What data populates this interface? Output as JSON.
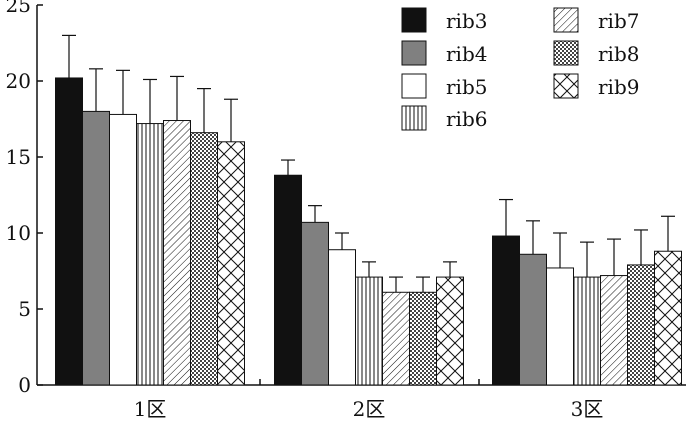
{
  "chart_data": {
    "type": "bar",
    "categories": [
      "1区",
      "2区",
      "3区"
    ],
    "series": [
      {
        "name": "rib3",
        "values": [
          20.2,
          13.8,
          9.8
        ],
        "errors": [
          2.8,
          1.0,
          2.4
        ],
        "pattern": "solid-black"
      },
      {
        "name": "rib4",
        "values": [
          18.0,
          10.7,
          8.6
        ],
        "errors": [
          2.8,
          1.1,
          2.2
        ],
        "pattern": "solid-gray"
      },
      {
        "name": "rib5",
        "values": [
          17.8,
          8.9,
          7.7
        ],
        "errors": [
          2.9,
          1.1,
          2.3
        ],
        "pattern": "white"
      },
      {
        "name": "rib6",
        "values": [
          17.2,
          7.1,
          7.1
        ],
        "errors": [
          2.9,
          1.0,
          2.3
        ],
        "pattern": "vertical-lines"
      },
      {
        "name": "rib7",
        "values": [
          17.4,
          6.1,
          7.2
        ],
        "errors": [
          2.9,
          1.0,
          2.4
        ],
        "pattern": "diagonal-lines"
      },
      {
        "name": "rib8",
        "values": [
          16.6,
          6.1,
          7.9
        ],
        "errors": [
          2.9,
          1.0,
          2.3
        ],
        "pattern": "checker"
      },
      {
        "name": "rib9",
        "values": [
          16.0,
          7.1,
          8.8
        ],
        "errors": [
          2.8,
          1.0,
          2.3
        ],
        "pattern": "crosshatch"
      }
    ],
    "title": "",
    "xlabel": "",
    "ylabel": "",
    "ylim": [
      0,
      25
    ],
    "yticks": [
      "0",
      "5",
      "10",
      "15",
      "20",
      "25"
    ],
    "grid": false,
    "legend_position": "top-right",
    "colors": {
      "black": "#111111",
      "gray": "#808080",
      "white": "#ffffff"
    }
  }
}
